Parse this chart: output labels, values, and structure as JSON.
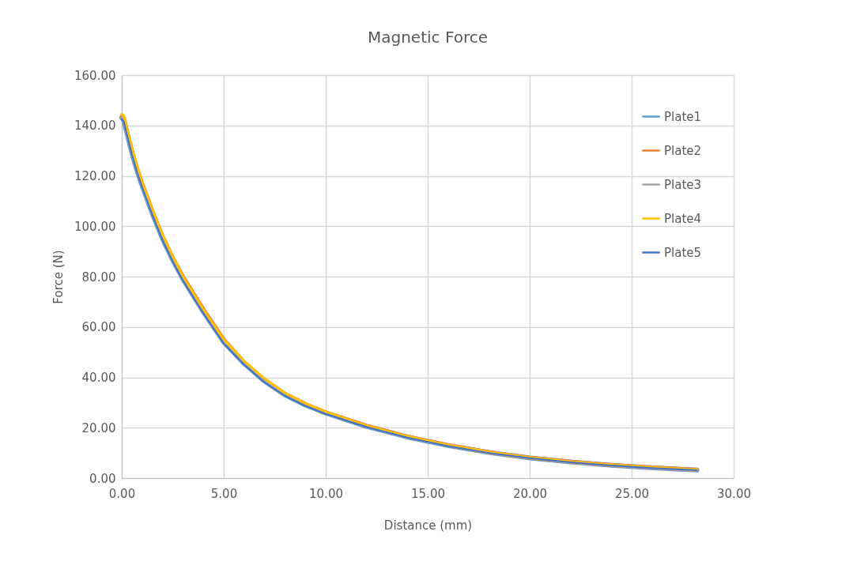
{
  "chart_data": {
    "type": "line",
    "title": "Magnetic Force",
    "xlabel": "Distance (mm)",
    "ylabel": "Force (N)",
    "x": [
      0,
      0.1,
      0.25,
      0.5,
      0.75,
      1,
      1.5,
      2,
      2.5,
      3,
      4,
      5,
      6,
      7,
      8,
      9,
      10,
      12,
      14,
      16,
      18,
      20,
      22,
      24,
      26,
      28.2
    ],
    "series": [
      {
        "name": "Plate1",
        "color": "#5b9bd5",
        "values": [
          143,
          142,
          137,
          129,
          122,
          116,
          105,
          95,
          86.5,
          79,
          66,
          54,
          45.5,
          38.5,
          33,
          29,
          25.8,
          20.5,
          16.3,
          12.9,
          10.2,
          8,
          6.4,
          5.1,
          4.1,
          3.2
        ]
      },
      {
        "name": "Plate2",
        "color": "#ed7d31",
        "values": [
          143.5,
          143,
          138,
          130,
          123,
          117,
          106,
          96,
          87.5,
          80,
          67,
          55,
          46,
          39,
          33.5,
          29.4,
          26.1,
          20.8,
          16.5,
          13.1,
          10.3,
          8.1,
          6.5,
          5.2,
          4.2,
          3.3
        ]
      },
      {
        "name": "Plate3",
        "color": "#a5a5a5",
        "values": [
          143,
          142,
          137,
          129,
          122,
          116,
          105,
          95,
          86.5,
          79,
          66,
          54,
          45.5,
          38.5,
          33,
          29,
          25.8,
          20.5,
          16.3,
          12.9,
          10.2,
          8,
          6.4,
          5.1,
          4.1,
          3.2
        ]
      },
      {
        "name": "Plate4",
        "color": "#ffc000",
        "values": [
          144.5,
          144,
          139,
          131,
          124,
          117.5,
          106.5,
          96.5,
          88,
          80,
          67,
          55,
          46.5,
          39.5,
          33.8,
          29.6,
          26.3,
          20.9,
          16.6,
          13.2,
          10.4,
          8.2,
          6.6,
          5.3,
          4.3,
          3.4
        ]
      },
      {
        "name": "Plate5",
        "color": "#4472c4",
        "values": [
          142.5,
          141.5,
          136.5,
          128.5,
          121.5,
          115.5,
          104.5,
          94.5,
          86,
          78.5,
          65.5,
          53.5,
          45,
          38,
          32.7,
          28.7,
          25.5,
          20.3,
          16.1,
          12.7,
          10,
          7.9,
          6.3,
          5,
          4,
          3.1
        ]
      }
    ],
    "xlim": [
      0,
      30
    ],
    "xticks": [
      {
        "value": 0,
        "label": "0.00"
      },
      {
        "value": 5,
        "label": "5.00"
      },
      {
        "value": 10,
        "label": "10.00"
      },
      {
        "value": 15,
        "label": "15.00"
      },
      {
        "value": 20,
        "label": "20.00"
      },
      {
        "value": 25,
        "label": "25.00"
      },
      {
        "value": 30,
        "label": "30.00"
      }
    ],
    "ylim": [
      0,
      160
    ],
    "yticks": [
      {
        "value": 0,
        "label": "0.00"
      },
      {
        "value": 20,
        "label": "20.00"
      },
      {
        "value": 40,
        "label": "40.00"
      },
      {
        "value": 60,
        "label": "60.00"
      },
      {
        "value": 80,
        "label": "80.00"
      },
      {
        "value": 100,
        "label": "100.00"
      },
      {
        "value": 120,
        "label": "120.00"
      },
      {
        "value": 140,
        "label": "140.00"
      },
      {
        "value": 160,
        "label": "160.00"
      }
    ],
    "grid": true,
    "legend": "top right",
    "marker": "none",
    "line_style": "solid"
  }
}
